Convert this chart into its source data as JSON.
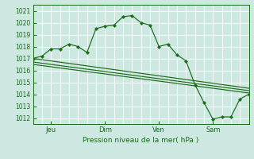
{
  "bg_color": "#cce8e0",
  "grid_color": "#ffffff",
  "line_color": "#1a6b1a",
  "title": "Pression niveau de la mer( hPa )",
  "ylabel_values": [
    1012,
    1013,
    1014,
    1015,
    1016,
    1017,
    1018,
    1019,
    1020,
    1021
  ],
  "ylim": [
    1011.5,
    1021.5
  ],
  "xlim": [
    0,
    96
  ],
  "xtick_positions": [
    8,
    32,
    56,
    80
  ],
  "xtick_labels": [
    "Jeu",
    "Dim",
    "Ven",
    "Sam"
  ],
  "series1_x": [
    0,
    4,
    8,
    12,
    16,
    20,
    24,
    28,
    32,
    36,
    40,
    44,
    48,
    52,
    56,
    60,
    64,
    68,
    72,
    76,
    80,
    84,
    88,
    92,
    96
  ],
  "series1_y": [
    1017.0,
    1017.2,
    1017.8,
    1017.8,
    1018.2,
    1018.0,
    1017.5,
    1019.5,
    1019.7,
    1019.8,
    1020.5,
    1020.6,
    1020.0,
    1019.8,
    1018.0,
    1018.2,
    1017.3,
    1016.8,
    1014.8,
    1013.3,
    1011.9,
    1012.1,
    1012.1,
    1013.6,
    1014.0
  ],
  "series2_x": [
    0,
    96
  ],
  "series2_y": [
    1017.0,
    1014.5
  ],
  "series3_x": [
    0,
    96
  ],
  "series3_y": [
    1016.7,
    1014.3
  ],
  "series4_x": [
    0,
    96
  ],
  "series4_y": [
    1016.5,
    1014.1
  ]
}
